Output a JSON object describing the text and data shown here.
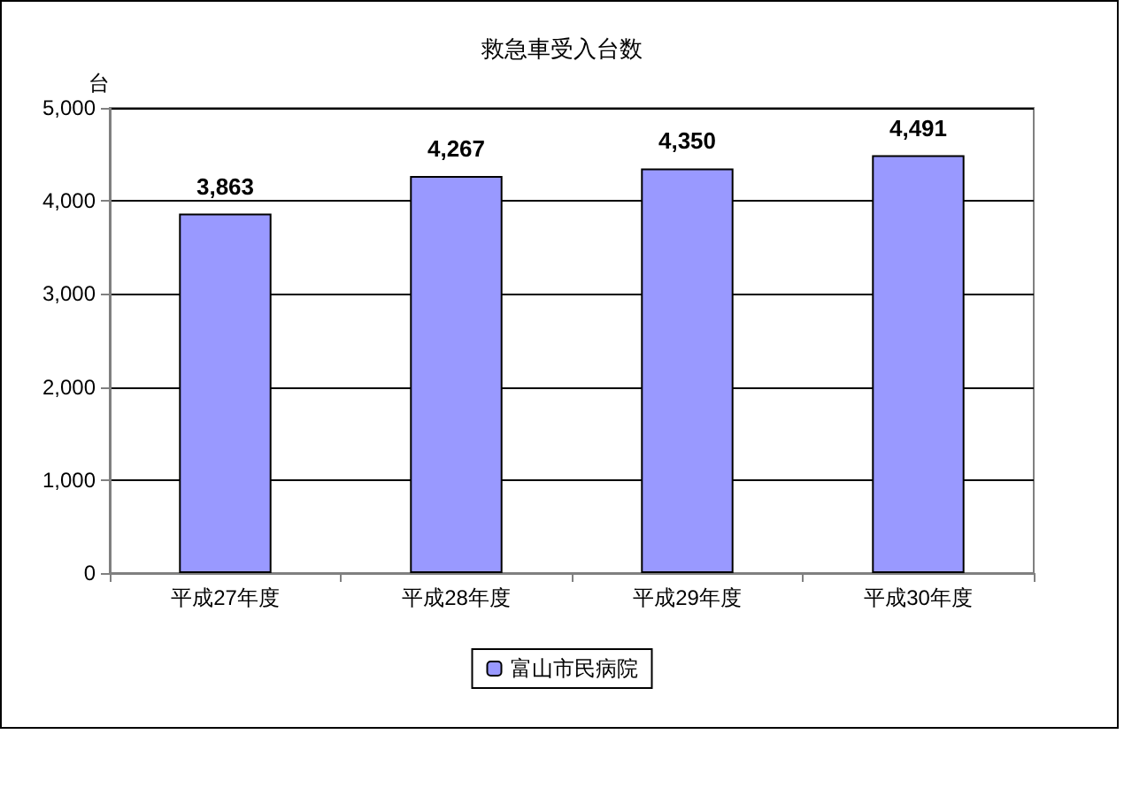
{
  "chart_data": {
    "type": "bar",
    "title": "救急車受入台数",
    "ylabel": "台",
    "categories": [
      "平成27年度",
      "平成28年度",
      "平成29年度",
      "平成30年度"
    ],
    "series": [
      {
        "name": "富山市民病院",
        "color": "#9999ff",
        "values": [
          3863,
          4267,
          4350,
          4491
        ],
        "value_labels": [
          "3,863",
          "4,267",
          "4,350",
          "4,491"
        ]
      }
    ],
    "ylim": [
      0,
      5000
    ],
    "yticks": [
      {
        "value": 0,
        "label": "0"
      },
      {
        "value": 1000,
        "label": "1,000"
      },
      {
        "value": 2000,
        "label": "2,000"
      },
      {
        "value": 3000,
        "label": "3,000"
      },
      {
        "value": 4000,
        "label": "4,000"
      },
      {
        "value": 5000,
        "label": "5,000"
      }
    ],
    "grid": "y",
    "legend": "bottom"
  }
}
